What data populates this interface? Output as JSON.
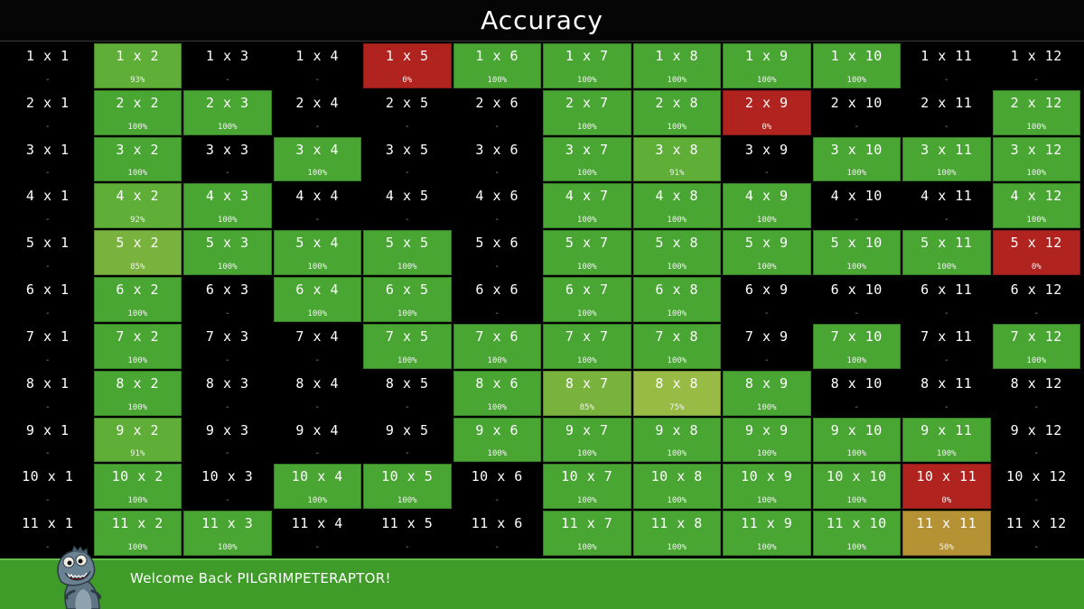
{
  "header": {
    "title": "Accuracy"
  },
  "colors": {
    "full": "#49a633",
    "high": "#5fae38",
    "mid": "#79b33d",
    "low": "#98bb45",
    "half": "#b59234",
    "zero": "#b1231f"
  },
  "grid": {
    "rows": [
      {
        "cells": [
          {
            "label": "1 x 1",
            "score": "-"
          },
          {
            "label": "1 x 2",
            "score": "93%"
          },
          {
            "label": "1 x 3",
            "score": "-"
          },
          {
            "label": "1 x 4",
            "score": "-"
          },
          {
            "label": "1 x 5",
            "score": "0%"
          },
          {
            "label": "1 x 6",
            "score": "100%"
          },
          {
            "label": "1 x 7",
            "score": "100%"
          },
          {
            "label": "1 x 8",
            "score": "100%"
          },
          {
            "label": "1 x 9",
            "score": "100%"
          },
          {
            "label": "1 x 10",
            "score": "100%"
          },
          {
            "label": "1 x 11",
            "score": "-"
          },
          {
            "label": "1 x 12",
            "score": "-"
          }
        ]
      },
      {
        "cells": [
          {
            "label": "2 x 1",
            "score": "-"
          },
          {
            "label": "2 x 2",
            "score": "100%"
          },
          {
            "label": "2 x 3",
            "score": "100%"
          },
          {
            "label": "2 x 4",
            "score": "-"
          },
          {
            "label": "2 x 5",
            "score": "-"
          },
          {
            "label": "2 x 6",
            "score": "-"
          },
          {
            "label": "2 x 7",
            "score": "100%"
          },
          {
            "label": "2 x 8",
            "score": "100%"
          },
          {
            "label": "2 x 9",
            "score": "0%"
          },
          {
            "label": "2 x 10",
            "score": "-"
          },
          {
            "label": "2 x 11",
            "score": "-"
          },
          {
            "label": "2 x 12",
            "score": "100%"
          }
        ]
      },
      {
        "cells": [
          {
            "label": "3 x 1",
            "score": "-"
          },
          {
            "label": "3 x 2",
            "score": "100%"
          },
          {
            "label": "3 x 3",
            "score": "-"
          },
          {
            "label": "3 x 4",
            "score": "100%"
          },
          {
            "label": "3 x 5",
            "score": "-"
          },
          {
            "label": "3 x 6",
            "score": "-"
          },
          {
            "label": "3 x 7",
            "score": "100%"
          },
          {
            "label": "3 x 8",
            "score": "91%"
          },
          {
            "label": "3 x 9",
            "score": "-"
          },
          {
            "label": "3 x 10",
            "score": "100%"
          },
          {
            "label": "3 x 11",
            "score": "100%"
          },
          {
            "label": "3 x 12",
            "score": "100%"
          }
        ]
      },
      {
        "cells": [
          {
            "label": "4 x 1",
            "score": "-"
          },
          {
            "label": "4 x 2",
            "score": "92%"
          },
          {
            "label": "4 x 3",
            "score": "100%"
          },
          {
            "label": "4 x 4",
            "score": "-"
          },
          {
            "label": "4 x 5",
            "score": "-"
          },
          {
            "label": "4 x 6",
            "score": "-"
          },
          {
            "label": "4 x 7",
            "score": "100%"
          },
          {
            "label": "4 x 8",
            "score": "100%"
          },
          {
            "label": "4 x 9",
            "score": "100%"
          },
          {
            "label": "4 x 10",
            "score": "-"
          },
          {
            "label": "4 x 11",
            "score": "-"
          },
          {
            "label": "4 x 12",
            "score": "100%"
          }
        ]
      },
      {
        "cells": [
          {
            "label": "5 x 1",
            "score": "-"
          },
          {
            "label": "5 x 2",
            "score": "85%"
          },
          {
            "label": "5 x 3",
            "score": "100%"
          },
          {
            "label": "5 x 4",
            "score": "100%"
          },
          {
            "label": "5 x 5",
            "score": "100%"
          },
          {
            "label": "5 x 6",
            "score": "-"
          },
          {
            "label": "5 x 7",
            "score": "100%"
          },
          {
            "label": "5 x 8",
            "score": "100%"
          },
          {
            "label": "5 x 9",
            "score": "100%"
          },
          {
            "label": "5 x 10",
            "score": "100%"
          },
          {
            "label": "5 x 11",
            "score": "100%"
          },
          {
            "label": "5 x 12",
            "score": "0%"
          }
        ]
      },
      {
        "cells": [
          {
            "label": "6 x 1",
            "score": "-"
          },
          {
            "label": "6 x 2",
            "score": "100%"
          },
          {
            "label": "6 x 3",
            "score": "-"
          },
          {
            "label": "6 x 4",
            "score": "100%"
          },
          {
            "label": "6 x 5",
            "score": "100%"
          },
          {
            "label": "6 x 6",
            "score": "-"
          },
          {
            "label": "6 x 7",
            "score": "100%"
          },
          {
            "label": "6 x 8",
            "score": "100%"
          },
          {
            "label": "6 x 9",
            "score": "-"
          },
          {
            "label": "6 x 10",
            "score": "-"
          },
          {
            "label": "6 x 11",
            "score": "-"
          },
          {
            "label": "6 x 12",
            "score": "-"
          }
        ]
      },
      {
        "cells": [
          {
            "label": "7 x 1",
            "score": "-"
          },
          {
            "label": "7 x 2",
            "score": "100%"
          },
          {
            "label": "7 x 3",
            "score": "-"
          },
          {
            "label": "7 x 4",
            "score": "-"
          },
          {
            "label": "7 x 5",
            "score": "100%"
          },
          {
            "label": "7 x 6",
            "score": "100%"
          },
          {
            "label": "7 x 7",
            "score": "100%"
          },
          {
            "label": "7 x 8",
            "score": "100%"
          },
          {
            "label": "7 x 9",
            "score": "-"
          },
          {
            "label": "7 x 10",
            "score": "100%"
          },
          {
            "label": "7 x 11",
            "score": "-"
          },
          {
            "label": "7 x 12",
            "score": "100%"
          }
        ]
      },
      {
        "cells": [
          {
            "label": "8 x 1",
            "score": "-"
          },
          {
            "label": "8 x 2",
            "score": "100%"
          },
          {
            "label": "8 x 3",
            "score": "-"
          },
          {
            "label": "8 x 4",
            "score": "-"
          },
          {
            "label": "8 x 5",
            "score": "-"
          },
          {
            "label": "8 x 6",
            "score": "100%"
          },
          {
            "label": "8 x 7",
            "score": "85%"
          },
          {
            "label": "8 x 8",
            "score": "75%"
          },
          {
            "label": "8 x 9",
            "score": "100%"
          },
          {
            "label": "8 x 10",
            "score": "-"
          },
          {
            "label": "8 x 11",
            "score": "-"
          },
          {
            "label": "8 x 12",
            "score": "-"
          }
        ]
      },
      {
        "cells": [
          {
            "label": "9 x 1",
            "score": "-"
          },
          {
            "label": "9 x 2",
            "score": "91%"
          },
          {
            "label": "9 x 3",
            "score": "-"
          },
          {
            "label": "9 x 4",
            "score": "-"
          },
          {
            "label": "9 x 5",
            "score": "-"
          },
          {
            "label": "9 x 6",
            "score": "100%"
          },
          {
            "label": "9 x 7",
            "score": "100%"
          },
          {
            "label": "9 x 8",
            "score": "100%"
          },
          {
            "label": "9 x 9",
            "score": "100%"
          },
          {
            "label": "9 x 10",
            "score": "100%"
          },
          {
            "label": "9 x 11",
            "score": "100%"
          },
          {
            "label": "9 x 12",
            "score": "-"
          }
        ]
      },
      {
        "cells": [
          {
            "label": "10 x 1",
            "score": "-"
          },
          {
            "label": "10 x 2",
            "score": "100%"
          },
          {
            "label": "10 x 3",
            "score": "-"
          },
          {
            "label": "10 x 4",
            "score": "100%"
          },
          {
            "label": "10 x 5",
            "score": "100%"
          },
          {
            "label": "10 x 6",
            "score": "-"
          },
          {
            "label": "10 x 7",
            "score": "100%"
          },
          {
            "label": "10 x 8",
            "score": "100%"
          },
          {
            "label": "10 x 9",
            "score": "100%"
          },
          {
            "label": "10 x 10",
            "score": "100%"
          },
          {
            "label": "10 x 11",
            "score": "0%"
          },
          {
            "label": "10 x 12",
            "score": "-"
          }
        ]
      },
      {
        "cells": [
          {
            "label": "11 x 1",
            "score": "-"
          },
          {
            "label": "11 x 2",
            "score": "100%"
          },
          {
            "label": "11 x 3",
            "score": "100%"
          },
          {
            "label": "11 x 4",
            "score": "-"
          },
          {
            "label": "11 x 5",
            "score": "-"
          },
          {
            "label": "11 x 6",
            "score": "-"
          },
          {
            "label": "11 x 7",
            "score": "100%"
          },
          {
            "label": "11 x 8",
            "score": "100%"
          },
          {
            "label": "11 x 9",
            "score": "100%"
          },
          {
            "label": "11 x 10",
            "score": "100%"
          },
          {
            "label": "11 x 11",
            "score": "50%"
          },
          {
            "label": "11 x 12",
            "score": "-"
          }
        ]
      }
    ]
  },
  "footer": {
    "welcome": "Welcome Back PILGRIMPETERAPTOR!",
    "mascot_icon": "dinosaur-mascot-icon"
  }
}
